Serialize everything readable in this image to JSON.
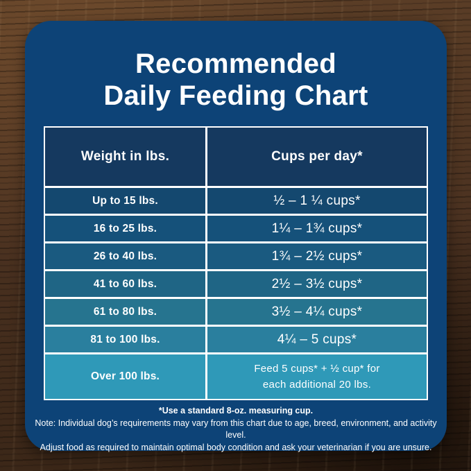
{
  "title": {
    "line1": "Recommended",
    "line2": "Daily Feeding Chart"
  },
  "table": {
    "headers": {
      "weight": "Weight in lbs.",
      "cups": "Cups per day*"
    },
    "rows": [
      {
        "weight": "Up to 15 lbs.",
        "cups": "½ – 1 ¼ cups*",
        "bg": "#14486f"
      },
      {
        "weight": "16 to 25 lbs.",
        "cups": "1¼ – 1¾  cups*",
        "bg": "#15517a"
      },
      {
        "weight": "26 to 40 lbs.",
        "cups": "1¾ – 2½ cups*",
        "bg": "#1a5a80"
      },
      {
        "weight": "41 to 60 lbs.",
        "cups": "2½ – 3½ cups*",
        "bg": "#1f6585"
      },
      {
        "weight": "61 to 80 lbs.",
        "cups": "3½ – 4¼ cups*",
        "bg": "#26748f"
      },
      {
        "weight": "81 to 100 lbs.",
        "cups": "4¼ – 5 cups*",
        "bg": "#2a7f9e"
      }
    ],
    "last_row": {
      "weight": "Over 100 lbs.",
      "cups_line1": "Feed 5 cups* + ½ cup* for",
      "cups_line2": "each additional 20 lbs.",
      "bg": "#2f99b8"
    }
  },
  "footnotes": {
    "measuring_cup": "*Use a standard 8-oz. measuring cup.",
    "note_line1": "Note: Individual dog’s requirements may vary from this chart due to age, breed, environment, and activity level.",
    "note_line2": "Adjust food as required to maintain optimal body condition and ask your veterinarian if you are unsure."
  },
  "colors": {
    "card_bg": "#0d4377",
    "header_cell_bg": "#15395f",
    "table_border": "#ffffff",
    "text": "#ffffff",
    "wood_base": "#4a3120",
    "row_gradient": [
      "#14486f",
      "#15517a",
      "#1a5a80",
      "#1f6585",
      "#26748f",
      "#2a7f9e",
      "#2f99b8"
    ]
  },
  "chart_data": {
    "type": "table",
    "title": "Recommended Daily Feeding Chart",
    "columns": [
      "Weight in lbs.",
      "Cups per day*"
    ],
    "rows": [
      [
        "Up to 15 lbs.",
        "½ – 1 ¼ cups*"
      ],
      [
        "16 to 25 lbs.",
        "1¼ – 1¾ cups*"
      ],
      [
        "26 to 40 lbs.",
        "1¾ – 2½ cups*"
      ],
      [
        "41 to 60 lbs.",
        "2½ – 3½ cups*"
      ],
      [
        "61 to 80 lbs.",
        "3½ – 4¼ cups*"
      ],
      [
        "81 to 100 lbs.",
        "4¼ – 5 cups*"
      ],
      [
        "Over 100 lbs.",
        "Feed 5 cups* + ½ cup* for each additional 20 lbs."
      ]
    ],
    "footnote": "*Use a standard 8-oz. measuring cup."
  }
}
